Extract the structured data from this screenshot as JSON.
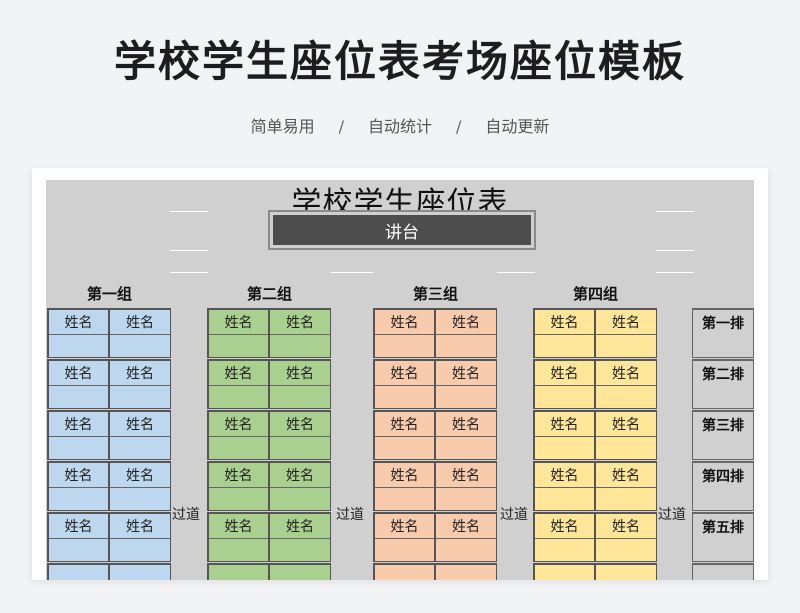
{
  "header": {
    "title": "学校学生座位表考场座位模板",
    "features": [
      "简单易用",
      "自动统计",
      "自动更新"
    ],
    "separator": "/"
  },
  "sheet": {
    "title": "学校学生座位表",
    "podium": "讲台",
    "aisle_label": "过道",
    "seat_placeholder": "姓名",
    "groups": [
      {
        "label": "第一组",
        "color": "#bdd7ee"
      },
      {
        "label": "第二组",
        "color": "#a9d08e"
      },
      {
        "label": "第三组",
        "color": "#f8cbad"
      },
      {
        "label": "第四组",
        "color": "#ffe699"
      }
    ],
    "rows": [
      "第一排",
      "第二排",
      "第三排",
      "第四排",
      "第五排"
    ]
  }
}
